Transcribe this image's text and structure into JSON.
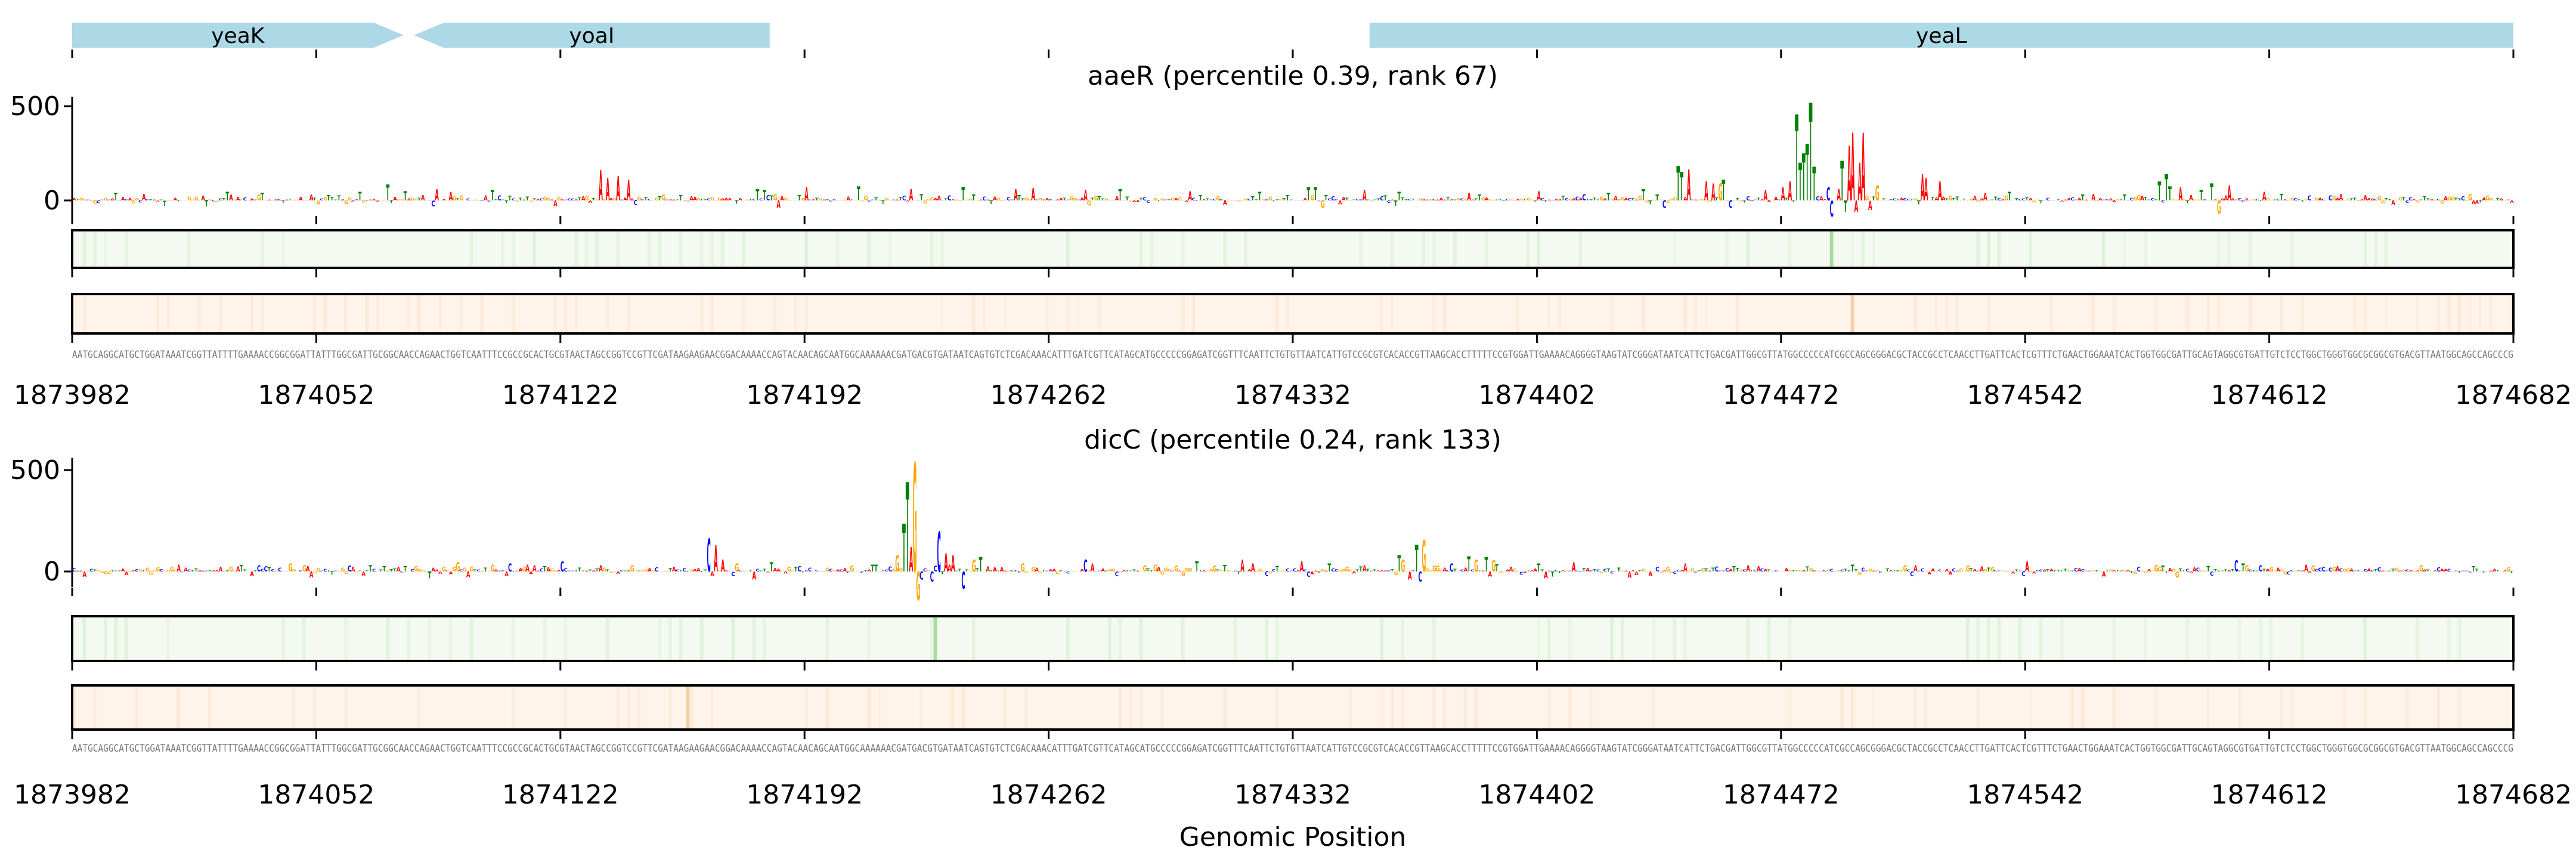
{
  "chart_data": {
    "type": "sequence-logo-tracks",
    "xlabel": "Genomic Position",
    "x_range": [
      1873982,
      1874682
    ],
    "x_ticks": [
      "1873982",
      "1874052",
      "1874122",
      "1874192",
      "1874262",
      "1874332",
      "1874402",
      "1874472",
      "1874542",
      "1874612",
      "1874682"
    ],
    "genes": [
      {
        "name": "yeaK",
        "start_offset": 0,
        "end_offset": 95,
        "strand": "+"
      },
      {
        "name": "yoaI",
        "start_offset": 98,
        "end_offset": 200,
        "strand": "-"
      },
      {
        "name": "yeaL",
        "start_offset": 372,
        "end_offset": 700,
        "strand": "none"
      }
    ],
    "sequence": "AATGCAGGCATGCTGGATAAATCGGTTATTTTGAAAACCGGCGGATTATTTGGCGATTGCGGCAACCAGAACTGGTCAATTTCCGCCGCACTGCGTAACTAGCCGGTCCGTTCGATAAGAAGAACGGACAAAACCAGTACAACAGCAATGGCAAAAAACGATGACGTGATAATCAGTGTCTCGACAAACATTTGATCGTTCATAGCATGCCCCCGGAGATCGGTTTCAATTCTGTGTTAATCATTGTCCGCGTCACACCGTTAAGCACCTTTTTCCGTGGATTGAAAACAGGGGTAAGTATCGGGATAATCATTCTGACGATTGGCGTTATGGCCCCCATCGCCAGCGGGACGCTACCGCCTCAACCTTGATTCACTCGTTTCTGAACTGGAAATCACTGGTGGCGATTGCAGTAGGCGTGATTGTCTCCTGGCTGGGTGGCGCGGCGTGACGTTAATGGCAGCCAGCCCG",
    "panels": [
      {
        "title": "aaeR (percentile 0.39, rank 67)",
        "ylim": [
          -100,
          550
        ],
        "yticks": [
          "0",
          "500"
        ],
        "yticks_values": [
          0,
          500
        ],
        "peaks": [
          [
            12,
            40,
            "T"
          ],
          [
            20,
            35,
            "A"
          ],
          [
            44,
            45,
            "T"
          ],
          [
            54,
            40,
            "T"
          ],
          [
            68,
            30,
            "A"
          ],
          [
            82,
            45,
            "T"
          ],
          [
            90,
            85,
            "T"
          ],
          [
            95,
            50,
            "T"
          ],
          [
            104,
            60,
            "A"
          ],
          [
            108,
            45,
            "A"
          ],
          [
            120,
            55,
            "T"
          ],
          [
            138,
            -30,
            "A"
          ],
          [
            151,
            160,
            "A"
          ],
          [
            153,
            120,
            "A"
          ],
          [
            156,
            130,
            "A"
          ],
          [
            159,
            110,
            "A"
          ],
          [
            196,
            60,
            "T"
          ],
          [
            198,
            55,
            "T"
          ],
          [
            202,
            -40,
            "A"
          ],
          [
            210,
            70,
            "A"
          ],
          [
            225,
            75,
            "T"
          ],
          [
            240,
            60,
            "A"
          ],
          [
            255,
            70,
            "T"
          ],
          [
            270,
            60,
            "A"
          ],
          [
            275,
            65,
            "A"
          ],
          [
            290,
            55,
            "A"
          ],
          [
            300,
            60,
            "T"
          ],
          [
            320,
            50,
            "A"
          ],
          [
            340,
            45,
            "T"
          ],
          [
            354,
            70,
            "T"
          ],
          [
            356,
            70,
            "T"
          ],
          [
            358,
            -40,
            "G"
          ],
          [
            370,
            55,
            "A"
          ],
          [
            380,
            45,
            "T"
          ],
          [
            400,
            40,
            "A"
          ],
          [
            420,
            50,
            "A"
          ],
          [
            440,
            40,
            "T"
          ],
          [
            450,
            60,
            "T"
          ],
          [
            456,
            -40,
            "C"
          ],
          [
            460,
            183,
            "T"
          ],
          [
            461,
            150,
            "T"
          ],
          [
            463,
            165,
            "A"
          ],
          [
            468,
            100,
            "A"
          ],
          [
            470,
            90,
            "A"
          ],
          [
            472,
            90,
            "G"
          ],
          [
            473,
            110,
            "T"
          ],
          [
            475,
            -40,
            "C"
          ],
          [
            485,
            55,
            "A"
          ],
          [
            490,
            70,
            "A"
          ],
          [
            492,
            100,
            "A"
          ],
          [
            494,
            457,
            "T"
          ],
          [
            495,
            200,
            "T"
          ],
          [
            496,
            250,
            "T"
          ],
          [
            497,
            300,
            "T"
          ],
          [
            498,
            519,
            "T"
          ],
          [
            499,
            180,
            "T"
          ],
          [
            503,
            70,
            "C"
          ],
          [
            504,
            -85,
            "C"
          ],
          [
            506,
            60,
            "A"
          ],
          [
            507,
            210,
            "T"
          ],
          [
            508,
            -60,
            "T"
          ],
          [
            509,
            290,
            "A"
          ],
          [
            510,
            360,
            "A"
          ],
          [
            511,
            -60,
            "A"
          ],
          [
            512,
            200,
            "A"
          ],
          [
            513,
            360,
            "A"
          ],
          [
            515,
            -50,
            "A"
          ],
          [
            517,
            80,
            "G"
          ],
          [
            530,
            140,
            "A"
          ],
          [
            531,
            120,
            "A"
          ],
          [
            535,
            100,
            "A"
          ],
          [
            548,
            40,
            "A"
          ],
          [
            555,
            45,
            "T"
          ],
          [
            588,
            30,
            "T"
          ],
          [
            598,
            100,
            "T"
          ],
          [
            600,
            140,
            "T"
          ],
          [
            601,
            75,
            "T"
          ],
          [
            604,
            70,
            "A"
          ],
          [
            610,
            55,
            "T"
          ],
          [
            613,
            90,
            "T"
          ],
          [
            615,
            -70,
            "G"
          ],
          [
            618,
            80,
            "A"
          ],
          [
            628,
            45,
            "A"
          ],
          [
            633,
            35,
            "T"
          ],
          [
            650,
            35,
            "A"
          ]
        ],
        "heatmap_a_peak_offsets": [
          504
        ],
        "heatmap_b_peak_offsets": [
          510
        ]
      },
      {
        "title": "dicC (percentile 0.24, rank 133)",
        "ylim": [
          -150,
          560
        ],
        "yticks": [
          "0",
          "500"
        ],
        "yticks_values": [
          0,
          500
        ],
        "peaks": [
          [
            30,
            35,
            "A"
          ],
          [
            62,
            40,
            "G"
          ],
          [
            66,
            30,
            "G"
          ],
          [
            68,
            -30,
            "A"
          ],
          [
            85,
            30,
            "T"
          ],
          [
            110,
            45,
            "G"
          ],
          [
            113,
            -30,
            "A"
          ],
          [
            120,
            35,
            "G"
          ],
          [
            125,
            40,
            "C"
          ],
          [
            130,
            35,
            "A"
          ],
          [
            140,
            50,
            "C"
          ],
          [
            160,
            30,
            "G"
          ],
          [
            182,
            162,
            "C"
          ],
          [
            184,
            130,
            "A"
          ],
          [
            186,
            60,
            "A"
          ],
          [
            190,
            40,
            "G"
          ],
          [
            195,
            -40,
            "A"
          ],
          [
            200,
            45,
            "T"
          ],
          [
            230,
            35,
            "T"
          ],
          [
            236,
            80,
            "G"
          ],
          [
            238,
            235,
            "T"
          ],
          [
            239,
            441,
            "T"
          ],
          [
            240,
            120,
            "A"
          ],
          [
            241,
            538,
            "G"
          ],
          [
            242,
            -141,
            "G"
          ],
          [
            243,
            -40,
            "C"
          ],
          [
            246,
            -50,
            "C"
          ],
          [
            248,
            197,
            "C"
          ],
          [
            250,
            90,
            "A"
          ],
          [
            252,
            80,
            "A"
          ],
          [
            255,
            -85,
            "C"
          ],
          [
            258,
            60,
            "G"
          ],
          [
            260,
            70,
            "T"
          ],
          [
            272,
            40,
            "G"
          ],
          [
            290,
            60,
            "C"
          ],
          [
            292,
            40,
            "A"
          ],
          [
            310,
            35,
            "G"
          ],
          [
            322,
            50,
            "T"
          ],
          [
            335,
            60,
            "A"
          ],
          [
            338,
            40,
            "A"
          ],
          [
            352,
            50,
            "A"
          ],
          [
            360,
            40,
            "T"
          ],
          [
            370,
            30,
            "A"
          ],
          [
            380,
            80,
            "T"
          ],
          [
            381,
            60,
            "G"
          ],
          [
            383,
            -40,
            "A"
          ],
          [
            385,
            132,
            "T"
          ],
          [
            386,
            -50,
            "C"
          ],
          [
            387,
            156,
            "G"
          ],
          [
            395,
            40,
            "C"
          ],
          [
            400,
            75,
            "T"
          ],
          [
            402,
            60,
            "G"
          ],
          [
            405,
            70,
            "T"
          ],
          [
            407,
            55,
            "G"
          ],
          [
            420,
            40,
            "T"
          ],
          [
            430,
            45,
            "A"
          ],
          [
            462,
            40,
            "A"
          ],
          [
            480,
            30,
            "A"
          ],
          [
            510,
            35,
            "T"
          ],
          [
            560,
            50,
            "A"
          ],
          [
            620,
            55,
            "C"
          ],
          [
            622,
            40,
            "T"
          ],
          [
            640,
            35,
            "A"
          ]
        ],
        "heatmap_a_peak_offsets": [
          247
        ],
        "heatmap_b_peak_offsets": [
          176
        ]
      }
    ]
  },
  "colors": {
    "A": "#ff0000",
    "C": "#0000ff",
    "G": "#ffa500",
    "T": "#008000",
    "gene": "#add8e6",
    "heat_a": "#f4faf1",
    "heat_a_peak": "#a8dca0",
    "heat_b": "#fef4ea",
    "heat_b_peak": "#f5cfa8"
  }
}
